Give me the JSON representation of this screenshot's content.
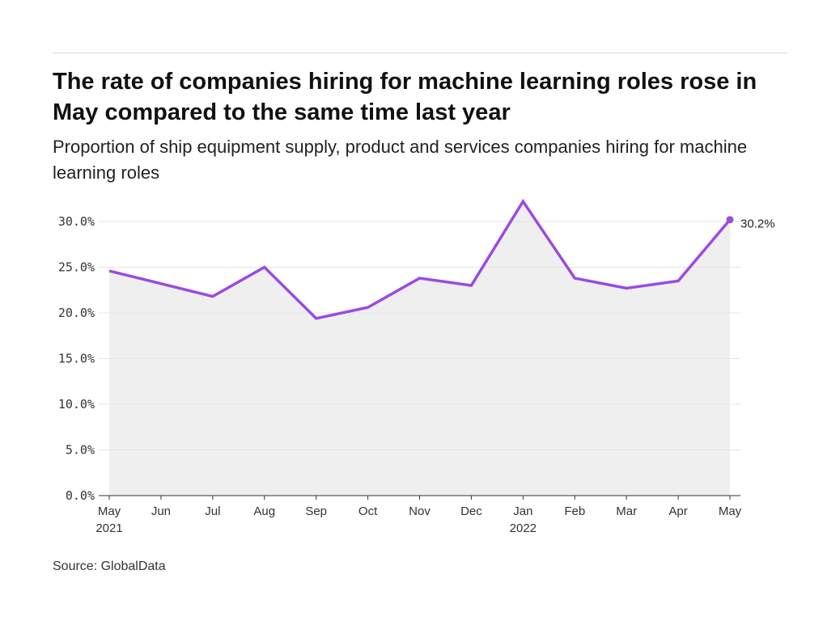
{
  "title": "The rate of companies hiring for machine learning roles rose in May compared to the same time last year",
  "subtitle": "Proportion of ship equipment supply, product and services companies hiring for machine learning roles",
  "source": "Source: GlobalData",
  "colors": {
    "line": "#9b4be0",
    "area": "#efefef",
    "grid": "#e4e4e4"
  },
  "chart_data": {
    "type": "area",
    "categories": [
      "May",
      "Jun",
      "Jul",
      "Aug",
      "Sep",
      "Oct",
      "Nov",
      "Dec",
      "Jan",
      "Feb",
      "Mar",
      "Apr",
      "May"
    ],
    "year_labels": [
      "2021",
      "",
      "",
      "",
      "",
      "",
      "",
      "",
      "2022",
      "",
      "",
      "",
      ""
    ],
    "values": [
      24.6,
      23.2,
      21.8,
      25.0,
      19.4,
      20.6,
      23.8,
      23.0,
      32.2,
      23.8,
      22.7,
      23.5,
      30.2
    ],
    "yticks": [
      "0.0%",
      "5.0%",
      "10.0%",
      "15.0%",
      "20.0%",
      "25.0%",
      "30.0%"
    ],
    "ylim": [
      0,
      30
    ],
    "grid": true,
    "last_label": "30.2%"
  }
}
